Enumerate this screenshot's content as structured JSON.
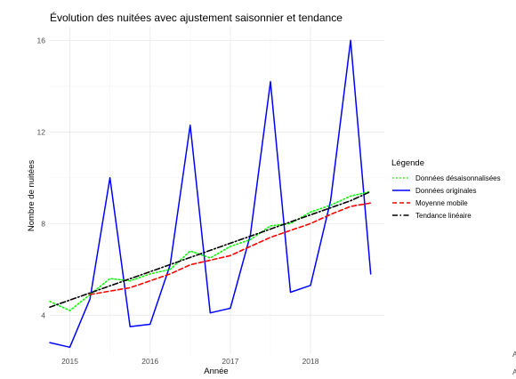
{
  "chart_data": {
    "type": "line",
    "title": "Évolution des nuitées avec ajustement saisonnier et tendance",
    "xlabel": "Année",
    "ylabel": "Nombre de nuitées",
    "xlim": [
      2014.75,
      2018.92
    ],
    "ylim": [
      2.3,
      16.6
    ],
    "x_ticks": [
      2015,
      2016,
      2017,
      2018
    ],
    "y_ticks": [
      4,
      8,
      12,
      16
    ],
    "grid": true,
    "legend": {
      "title": "Légende",
      "position": "right"
    },
    "x": [
      2014.75,
      2015.0,
      2015.25,
      2015.5,
      2015.75,
      2016.0,
      2016.25,
      2016.5,
      2016.75,
      2017.0,
      2017.25,
      2017.5,
      2017.75,
      2018.0,
      2018.25,
      2018.5,
      2018.75
    ],
    "series": [
      {
        "name": "Données désaisonnalisées",
        "color": "#00ff00",
        "dash": "dotted",
        "values": [
          4.6,
          4.2,
          4.9,
          5.6,
          5.5,
          5.8,
          6.0,
          6.8,
          6.5,
          7.0,
          7.3,
          7.9,
          8.0,
          8.5,
          8.8,
          9.2,
          9.4
        ]
      },
      {
        "name": "Données originales",
        "color": "#0000ff",
        "dash": "solid",
        "values": [
          2.8,
          2.6,
          4.7,
          10.0,
          3.5,
          3.6,
          6.2,
          12.3,
          4.1,
          4.3,
          7.5,
          14.2,
          5.0,
          5.3,
          9.0,
          16.0,
          5.8
        ]
      },
      {
        "name": "Moyenne mobile",
        "color": "#ff0000",
        "dash": "dashed",
        "values": [
          null,
          null,
          4.9,
          5.05,
          5.2,
          5.5,
          5.8,
          6.2,
          6.4,
          6.6,
          7.0,
          7.4,
          7.7,
          8.0,
          8.4,
          8.75,
          8.9
        ]
      },
      {
        "name": "Tendance linéaire",
        "color": "#000000",
        "dash": "dotdash",
        "values": [
          4.35,
          4.66,
          4.97,
          5.28,
          5.59,
          5.9,
          6.21,
          6.52,
          6.83,
          7.14,
          7.45,
          7.76,
          8.07,
          8.38,
          8.69,
          9.0,
          9.4
        ]
      }
    ]
  },
  "edge_text": [
    "A",
    "A"
  ]
}
